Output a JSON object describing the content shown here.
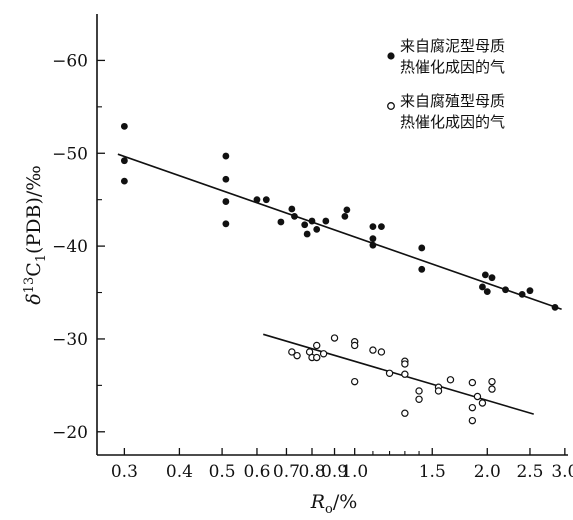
{
  "chart_data": {
    "type": "scatter",
    "xscale": "log",
    "xlim": [
      0.26,
      3.05
    ],
    "ylim": [
      -17.5,
      -65
    ],
    "xticks": [
      {
        "value": 0.3,
        "label": "0.3"
      },
      {
        "value": 0.4,
        "label": "0.4"
      },
      {
        "value": 0.5,
        "label": "0.5"
      },
      {
        "value": 0.6,
        "label": "0.6"
      },
      {
        "value": 0.7,
        "label": "0.7"
      },
      {
        "value": 0.8,
        "label": "0.8"
      },
      {
        "value": 0.9,
        "label": "0.9"
      },
      {
        "value": 1.0,
        "label": "1.0"
      },
      {
        "value": 1.5,
        "label": "1.5"
      },
      {
        "value": 2.0,
        "label": "2.0"
      },
      {
        "value": 2.5,
        "label": "2.5"
      },
      {
        "value": 3.0,
        "label": "3.0"
      }
    ],
    "xminor": [
      1.1,
      1.2,
      1.3,
      1.4
    ],
    "yticks": [
      {
        "value": -60,
        "label": "−60"
      },
      {
        "value": -50,
        "label": "−50"
      },
      {
        "value": -40,
        "label": "−40"
      },
      {
        "value": -30,
        "label": "−30"
      },
      {
        "value": -20,
        "label": "−20"
      }
    ],
    "yminor": [
      -55,
      -45,
      -35,
      -25
    ],
    "xlabel_main": "R",
    "xlabel_sub": "o",
    "xlabel_unit": "/%",
    "ylabel_delta": "δ",
    "ylabel_sup": "13",
    "ylabel_c": "C",
    "ylabel_sub": "1",
    "ylabel_rest": "(PDB)/‰",
    "grid": false,
    "legend_position": "top-right",
    "series": [
      {
        "name_line1": "来自腐泥型母质",
        "name_line2": "热催化成因的气",
        "marker": "filled",
        "points": [
          [
            0.3,
            -52.9
          ],
          [
            0.3,
            -49.2
          ],
          [
            0.3,
            -47.0
          ],
          [
            0.51,
            -49.7
          ],
          [
            0.51,
            -47.2
          ],
          [
            0.51,
            -44.8
          ],
          [
            0.51,
            -42.4
          ],
          [
            0.6,
            -45.0
          ],
          [
            0.63,
            -45.0
          ],
          [
            0.68,
            -42.6
          ],
          [
            0.72,
            -44.0
          ],
          [
            0.73,
            -43.2
          ],
          [
            0.77,
            -42.3
          ],
          [
            0.78,
            -41.3
          ],
          [
            0.8,
            -42.7
          ],
          [
            0.82,
            -41.8
          ],
          [
            0.86,
            -42.7
          ],
          [
            0.95,
            -43.2
          ],
          [
            0.96,
            -43.9
          ],
          [
            1.1,
            -42.1
          ],
          [
            1.1,
            -40.8
          ],
          [
            1.1,
            -40.1
          ],
          [
            1.15,
            -42.1
          ],
          [
            1.42,
            -39.8
          ],
          [
            1.42,
            -37.5
          ],
          [
            1.95,
            -35.6
          ],
          [
            1.98,
            -36.9
          ],
          [
            2.0,
            -35.1
          ],
          [
            2.05,
            -36.6
          ],
          [
            2.2,
            -35.3
          ],
          [
            2.4,
            -34.8
          ],
          [
            2.5,
            -35.2
          ],
          [
            2.85,
            -33.4
          ]
        ],
        "trend": [
          [
            0.29,
            -49.9
          ],
          [
            2.95,
            -33.2
          ]
        ]
      },
      {
        "name_line1": "来自腐殖型母质",
        "name_line2": "热催化成因的气",
        "marker": "open",
        "points": [
          [
            0.72,
            -28.6
          ],
          [
            0.74,
            -28.2
          ],
          [
            0.79,
            -28.6
          ],
          [
            0.8,
            -28.0
          ],
          [
            0.82,
            -29.3
          ],
          [
            0.82,
            -28.0
          ],
          [
            0.85,
            -28.4
          ],
          [
            0.9,
            -30.1
          ],
          [
            1.0,
            -29.7
          ],
          [
            1.0,
            -29.3
          ],
          [
            1.0,
            -25.4
          ],
          [
            1.1,
            -28.8
          ],
          [
            1.15,
            -28.6
          ],
          [
            1.2,
            -26.3
          ],
          [
            1.3,
            -27.6
          ],
          [
            1.3,
            -27.3
          ],
          [
            1.3,
            -26.2
          ],
          [
            1.3,
            -22.0
          ],
          [
            1.4,
            -24.4
          ],
          [
            1.4,
            -23.5
          ],
          [
            1.55,
            -24.8
          ],
          [
            1.55,
            -24.4
          ],
          [
            1.65,
            -25.6
          ],
          [
            1.85,
            -25.3
          ],
          [
            1.85,
            -22.6
          ],
          [
            1.85,
            -21.2
          ],
          [
            1.9,
            -23.8
          ],
          [
            1.95,
            -23.1
          ],
          [
            2.05,
            -25.4
          ],
          [
            2.05,
            -24.6
          ]
        ],
        "trend": [
          [
            0.62,
            -30.5
          ],
          [
            2.55,
            -21.9
          ]
        ]
      }
    ]
  }
}
